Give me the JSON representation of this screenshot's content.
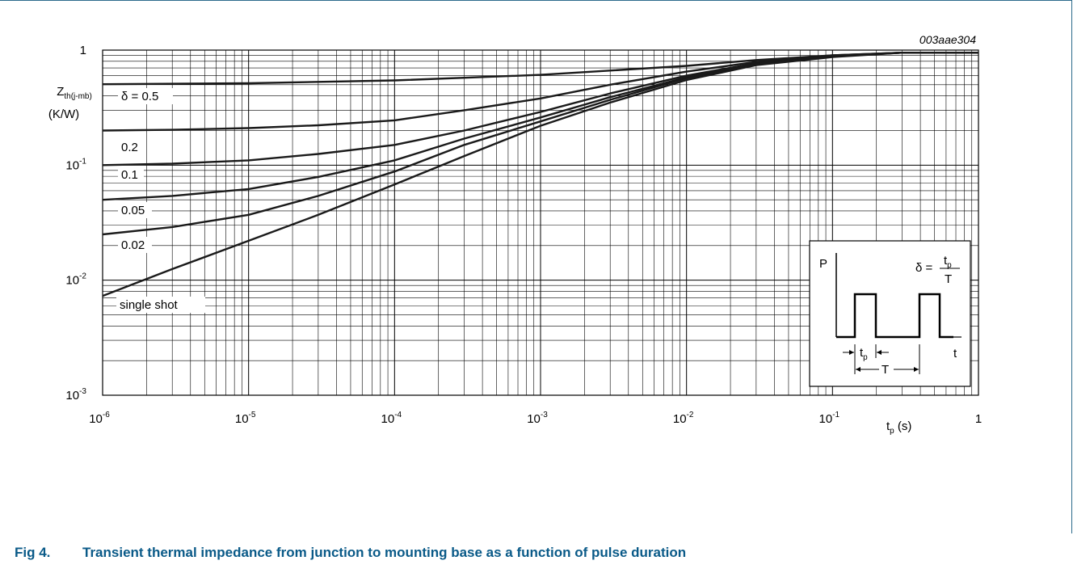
{
  "figure": {
    "code": "003aae304",
    "caption_number": "Fig 4.",
    "caption_text": "Transient thermal impedance from junction to mounting base as a function of pulse duration"
  },
  "chart_data": {
    "type": "line",
    "xscale": "log",
    "yscale": "log",
    "xlim": [
      1e-06,
      1
    ],
    "ylim": [
      0.001,
      1
    ],
    "grid": true,
    "xlabel": "tp (s)",
    "ylabel": "Zth(j-mb) (K/W)",
    "x_tick_labels": [
      "10-6",
      "10-5",
      "10-4",
      "10-3",
      "10-2",
      "10-1",
      "1"
    ],
    "y_tick_labels": [
      "10-3",
      "10-2",
      "10-1",
      "1"
    ],
    "series": [
      {
        "name": "δ = 0.5",
        "x": [
          1e-06,
          1e-05,
          0.0001,
          0.001,
          0.01,
          0.03,
          0.1,
          0.3,
          1
        ],
        "y": [
          0.505,
          0.515,
          0.545,
          0.61,
          0.73,
          0.82,
          0.9,
          0.95,
          0.95
        ]
      },
      {
        "name": "0.2",
        "x": [
          1e-06,
          3e-06,
          1e-05,
          3e-05,
          0.0001,
          0.0003,
          0.001,
          0.003,
          0.01,
          0.03,
          0.1,
          0.3,
          1
        ],
        "y": [
          0.2,
          0.203,
          0.21,
          0.222,
          0.245,
          0.3,
          0.38,
          0.5,
          0.65,
          0.79,
          0.9,
          0.95,
          0.95
        ]
      },
      {
        "name": "0.1",
        "x": [
          1e-06,
          3e-06,
          1e-05,
          3e-05,
          0.0001,
          0.0003,
          0.001,
          0.003,
          0.01,
          0.03,
          0.1,
          0.3,
          1
        ],
        "y": [
          0.1,
          0.103,
          0.11,
          0.125,
          0.15,
          0.2,
          0.29,
          0.42,
          0.6,
          0.77,
          0.89,
          0.95,
          0.95
        ]
      },
      {
        "name": "0.05",
        "x": [
          1e-06,
          3e-06,
          1e-05,
          3e-05,
          0.0001,
          0.0003,
          0.001,
          0.003,
          0.01,
          0.03,
          0.1,
          0.3,
          1
        ],
        "y": [
          0.05,
          0.054,
          0.062,
          0.079,
          0.11,
          0.17,
          0.26,
          0.39,
          0.58,
          0.76,
          0.89,
          0.95,
          0.95
        ]
      },
      {
        "name": "0.02",
        "x": [
          1e-06,
          3e-06,
          1e-05,
          3e-05,
          0.0001,
          0.0003,
          0.001,
          0.003,
          0.01,
          0.03,
          0.1,
          0.3,
          1
        ],
        "y": [
          0.025,
          0.029,
          0.037,
          0.054,
          0.088,
          0.15,
          0.24,
          0.37,
          0.57,
          0.75,
          0.88,
          0.95,
          0.95
        ]
      },
      {
        "name": "single shot",
        "x": [
          1e-06,
          3e-06,
          1e-05,
          3e-05,
          0.0001,
          0.0003,
          0.001,
          0.003,
          0.01,
          0.03,
          0.1,
          0.3,
          1
        ],
        "y": [
          0.0073,
          0.0125,
          0.022,
          0.037,
          0.068,
          0.12,
          0.22,
          0.35,
          0.55,
          0.74,
          0.87,
          0.95,
          0.95
        ]
      }
    ],
    "series_labels": [
      "δ = 0.5",
      "0.2",
      "0.1",
      "0.05",
      "0.02",
      "single shot"
    ],
    "inset": {
      "p_label": "P",
      "t_label": "t",
      "tp_label": "tp",
      "T_label": "T",
      "formula_lhs": "δ =",
      "formula_num": "tp",
      "formula_den": "T"
    }
  }
}
